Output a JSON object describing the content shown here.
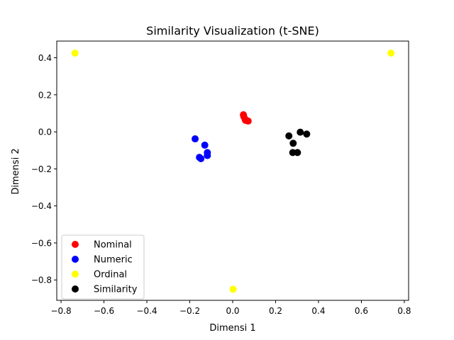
{
  "chart_data": {
    "type": "scatter",
    "title": "Similarity Visualization (t-SNE)",
    "xlabel": "Dimensi 1",
    "ylabel": "Dimensi 2",
    "xlim": [
      -0.82,
      0.82
    ],
    "ylim": [
      -0.91,
      0.49
    ],
    "xticks": [
      -0.8,
      -0.6,
      -0.4,
      -0.2,
      0.0,
      0.2,
      0.4,
      0.6,
      0.8
    ],
    "xtick_labels": [
      "−0.8",
      "−0.6",
      "−0.4",
      "−0.2",
      "0.0",
      "0.2",
      "0.4",
      "0.6",
      "0.8"
    ],
    "yticks": [
      -0.8,
      -0.6,
      -0.4,
      -0.2,
      0.0,
      0.2,
      0.4
    ],
    "ytick_labels": [
      "−0.8",
      "−0.6",
      "−0.4",
      "−0.2",
      "0.0",
      "0.2",
      "0.4"
    ],
    "grid": false,
    "legend_position": "lower-left",
    "series": [
      {
        "name": "Nominal",
        "color": "#ff0000",
        "points": [
          [
            0.05,
            0.092
          ],
          [
            0.052,
            0.082
          ],
          [
            0.058,
            0.068
          ],
          [
            0.06,
            0.062
          ],
          [
            0.072,
            0.058
          ]
        ]
      },
      {
        "name": "Numeric",
        "color": "#0000ff",
        "points": [
          [
            -0.175,
            -0.038
          ],
          [
            -0.13,
            -0.072
          ],
          [
            -0.118,
            -0.112
          ],
          [
            -0.118,
            -0.128
          ],
          [
            -0.155,
            -0.138
          ],
          [
            -0.148,
            -0.145
          ]
        ]
      },
      {
        "name": "Ordinal",
        "color": "#ffff00",
        "points": [
          [
            -0.735,
            0.425
          ],
          [
            0.738,
            0.425
          ],
          [
            0.002,
            -0.85
          ]
        ]
      },
      {
        "name": "Similarity",
        "color": "#000000",
        "points": [
          [
            0.262,
            -0.022
          ],
          [
            0.315,
            -0.002
          ],
          [
            0.345,
            -0.012
          ],
          [
            0.282,
            -0.062
          ],
          [
            0.28,
            -0.112
          ],
          [
            0.302,
            -0.112
          ]
        ]
      }
    ]
  }
}
